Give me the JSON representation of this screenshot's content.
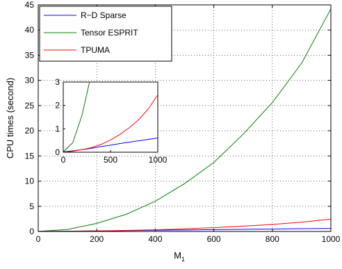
{
  "chart_data": [
    {
      "type": "line",
      "title": "",
      "xlabel": "M",
      "xlabel_subscript": "1",
      "ylabel": "CPU times (second)",
      "xlim": [
        0,
        1000
      ],
      "ylim": [
        0,
        45
      ],
      "xticks": [
        0,
        200,
        400,
        600,
        800,
        1000
      ],
      "yticks": [
        0,
        5,
        10,
        15,
        20,
        25,
        30,
        35,
        40,
        45
      ],
      "grid": true,
      "legend_position": "top-left",
      "series": [
        {
          "name": "R−D Sparse",
          "color": "#0000ff",
          "x": [
            0,
            100,
            200,
            300,
            400,
            500,
            600,
            700,
            800,
            900,
            1000
          ],
          "y": [
            0.02,
            0.06,
            0.11,
            0.17,
            0.24,
            0.3,
            0.37,
            0.43,
            0.49,
            0.55,
            0.61
          ]
        },
        {
          "name": "Tensor ESPRIT",
          "color": "#008000",
          "x": [
            0,
            100,
            200,
            300,
            400,
            500,
            600,
            700,
            800,
            900,
            1000
          ],
          "y": [
            0.02,
            0.4,
            1.6,
            3.4,
            6.0,
            9.5,
            13.7,
            19.3,
            25.6,
            33.4,
            44.2
          ]
        },
        {
          "name": "TPUMA",
          "color": "#ff0000",
          "x": [
            0,
            100,
            200,
            300,
            400,
            500,
            600,
            700,
            800,
            900,
            1000
          ],
          "y": [
            0.01,
            0.04,
            0.11,
            0.2,
            0.33,
            0.52,
            0.76,
            1.05,
            1.4,
            1.85,
            2.45
          ]
        }
      ]
    },
    {
      "type": "line",
      "title": "",
      "xlabel": "",
      "ylabel": "",
      "xlim": [
        0,
        1000
      ],
      "ylim": [
        0,
        3
      ],
      "xticks": [
        0,
        500,
        1000
      ],
      "yticks": [
        0,
        1,
        2,
        3
      ],
      "grid": false,
      "series": [
        {
          "color": "#0000ff",
          "x": [
            0,
            100,
            200,
            300,
            400,
            500,
            600,
            700,
            800,
            900,
            1000
          ],
          "y": [
            0.02,
            0.06,
            0.11,
            0.17,
            0.24,
            0.3,
            0.37,
            0.43,
            0.49,
            0.55,
            0.61
          ]
        },
        {
          "color": "#008000",
          "x": [
            0,
            100,
            200,
            300,
            400
          ],
          "y": [
            0.02,
            0.4,
            1.6,
            3.4,
            6.0
          ]
        },
        {
          "color": "#ff0000",
          "x": [
            0,
            100,
            200,
            300,
            400,
            500,
            600,
            700,
            800,
            900,
            1000
          ],
          "y": [
            0.01,
            0.04,
            0.11,
            0.2,
            0.33,
            0.52,
            0.76,
            1.05,
            1.4,
            1.85,
            2.45
          ]
        }
      ]
    }
  ]
}
